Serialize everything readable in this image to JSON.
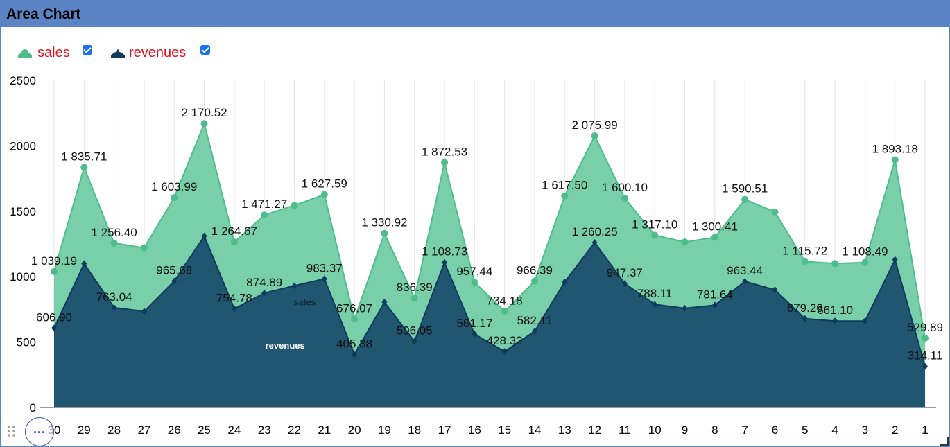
{
  "window": {
    "title": "Area Chart"
  },
  "legend": {
    "items": [
      {
        "label": "sales",
        "checked": true,
        "color": "#4dbd8b"
      },
      {
        "label": "revenues",
        "checked": true,
        "color": "#0e3a5c"
      }
    ]
  },
  "toolbar": {
    "more_label": "..."
  },
  "chart_data": {
    "type": "area",
    "categories": [
      "30",
      "29",
      "28",
      "27",
      "26",
      "25",
      "24",
      "23",
      "22",
      "21",
      "20",
      "19",
      "18",
      "17",
      "16",
      "15",
      "14",
      "13",
      "12",
      "11",
      "10",
      "9",
      "8",
      "7",
      "6",
      "5",
      "4",
      "3",
      "2",
      "1"
    ],
    "ylim": [
      0,
      2500
    ],
    "yticks": [
      "0",
      "500",
      "1000",
      "1500",
      "2000",
      "2500"
    ],
    "grid": true,
    "legend_position": "top-left",
    "series": [
      {
        "name": "sales",
        "color": "#4dbd8b",
        "fill": "#78cfaa",
        "values": [
          1039.19,
          1835.71,
          1256.4,
          1220,
          1603.99,
          2170.52,
          1264.67,
          1471.27,
          1545,
          1627.59,
          676.07,
          1330.92,
          836.39,
          1872.53,
          957.44,
          734.18,
          966.39,
          1617.5,
          2075.99,
          1600.1,
          1317.1,
          1265,
          1300.41,
          1590.51,
          1495,
          1115.72,
          1100,
          1108.49,
          1893.18,
          529.89
        ],
        "labels": [
          "1 039.19",
          "1 835.71",
          "1 256.40",
          "",
          "1 603.99",
          "2 170.52",
          "1 264.67",
          "1 471.27",
          "",
          "1 627.59",
          "676.07",
          "1 330.92",
          "836.39",
          "1 872.53",
          "957.44",
          "734.18",
          "966.39",
          "1 617.50",
          "2 075.99",
          "1 600.10",
          "1 317.10",
          "",
          "1 300.41",
          "1 590.51",
          "",
          "1 115.72",
          "",
          "1 108.49",
          "1 893.18",
          "529.89"
        ]
      },
      {
        "name": "revenues",
        "color": "#0e3a5c",
        "fill": "#215670",
        "values": [
          606.9,
          1100,
          763.04,
          735,
          965.68,
          1310,
          754.78,
          874.89,
          930,
          983.37,
          405.38,
          805,
          506.05,
          1108.73,
          561.17,
          428.32,
          582.11,
          960,
          1260.25,
          947.37,
          788.11,
          758,
          781.64,
          963.44,
          900,
          679.26,
          661.1,
          661,
          1130,
          314.11
        ],
        "labels": [
          "606.90",
          "",
          "763.04",
          "",
          "965.68",
          "",
          "754.78",
          "874.89",
          "",
          "983.37",
          "405.38",
          "",
          "506.05",
          "1 108.73",
          "561.17",
          "428.32",
          "582.11",
          "",
          "1 260.25",
          "947.37",
          "788.11",
          "",
          "781.64",
          "963.44",
          "",
          "679.26",
          "661.10",
          "",
          "",
          "314.11"
        ]
      }
    ],
    "area_labels": [
      {
        "text": "sales",
        "category": "22",
        "value": 780
      },
      {
        "text": "revenues",
        "category": "23",
        "value": 450
      }
    ]
  }
}
